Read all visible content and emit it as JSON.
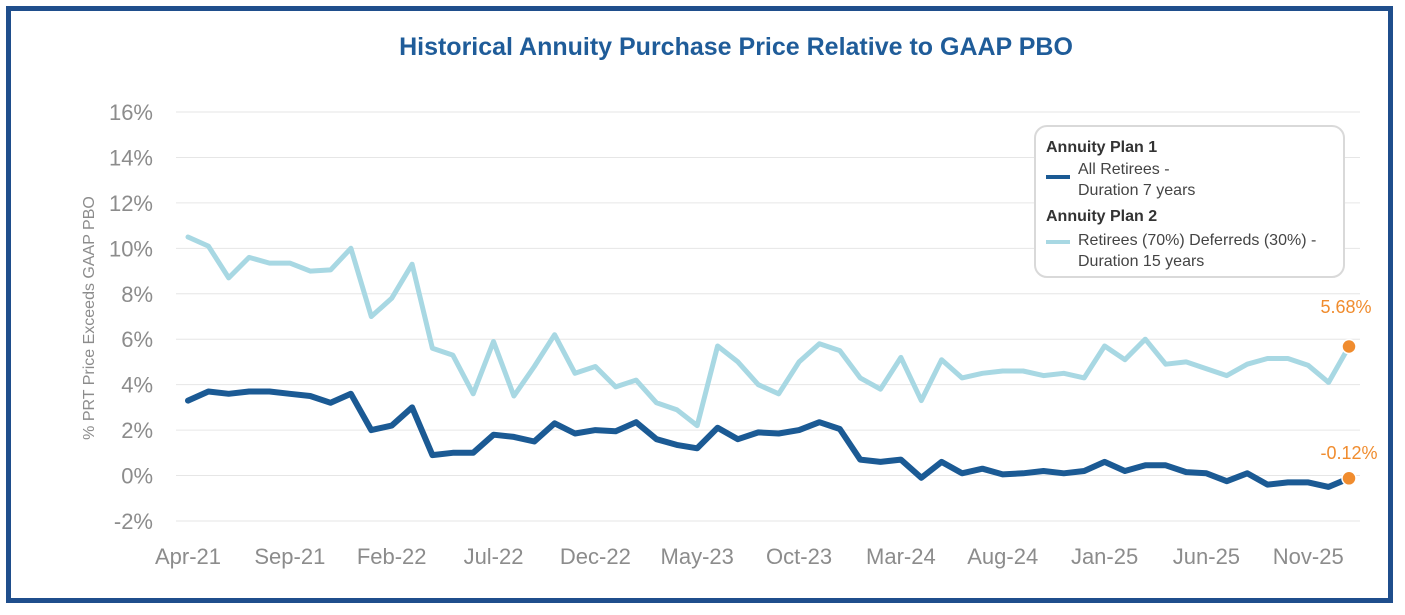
{
  "chart_data": {
    "type": "line",
    "title": "Historical Annuity Purchase Price Relative to GAAP PBO",
    "ylabel": "% PRT Price Exceeds GAAP PBO",
    "xlabel": "",
    "ylim": [
      -2,
      16
    ],
    "yticks": [
      -2,
      0,
      2,
      4,
      6,
      8,
      10,
      12,
      14,
      16
    ],
    "ytick_labels": [
      "-2%",
      "0%",
      "2%",
      "4%",
      "6%",
      "8%",
      "10%",
      "12%",
      "14%",
      "16%"
    ],
    "xtick_labels": [
      "Apr-21",
      "Sep-21",
      "Feb-22",
      "Jul-22",
      "Dec-22",
      "May-23",
      "Oct-23",
      "Mar-24",
      "Aug-24",
      "Jan-25",
      "Jun-25",
      "Nov-25"
    ],
    "xtick_interval_months": 5,
    "series": [
      {
        "name": "Retirees (70%) Deferreds (30%) - Duration 15 years",
        "group": "Annuity Plan 2",
        "color": "#a8d8e3",
        "values": [
          10.5,
          10.1,
          8.7,
          9.6,
          9.35,
          9.35,
          9.0,
          9.05,
          10.0,
          7.0,
          7.8,
          9.3,
          5.6,
          5.3,
          3.6,
          5.9,
          3.5,
          4.8,
          6.2,
          4.5,
          4.8,
          3.9,
          4.2,
          3.2,
          2.9,
          2.2,
          5.7,
          5.0,
          4.0,
          3.6,
          5.0,
          5.8,
          5.5,
          4.3,
          3.8,
          5.2,
          3.3,
          5.1,
          4.3,
          4.5,
          4.6,
          4.6,
          4.4,
          4.5,
          4.3,
          5.7,
          5.1,
          6.0,
          4.9,
          5.0,
          4.7,
          4.4,
          4.9,
          5.15,
          5.15,
          4.85,
          4.1,
          5.68
        ]
      },
      {
        "name": "All Retirees - Duration 7 years",
        "group": "Annuity Plan 1",
        "color": "#1b5a94",
        "values": [
          3.3,
          3.7,
          3.6,
          3.7,
          3.7,
          3.6,
          3.5,
          3.2,
          3.6,
          2.0,
          2.2,
          3.0,
          0.9,
          1.0,
          1.0,
          1.8,
          1.7,
          1.5,
          2.3,
          1.85,
          2.0,
          1.95,
          2.35,
          1.6,
          1.35,
          1.2,
          2.1,
          1.6,
          1.9,
          1.85,
          2.0,
          2.35,
          2.05,
          0.7,
          0.6,
          0.7,
          -0.1,
          0.6,
          0.1,
          0.3,
          0.05,
          0.1,
          0.2,
          0.1,
          0.2,
          0.6,
          0.2,
          0.45,
          0.45,
          0.15,
          0.1,
          -0.25,
          0.1,
          -0.4,
          -0.3,
          -0.3,
          -0.5,
          -0.12
        ]
      }
    ],
    "end_labels": [
      "5.68%",
      "-0.12%"
    ],
    "legend": {
      "position": "top-right",
      "plan1_heading": "Annuity Plan 1",
      "plan1_line1": "All Retirees -",
      "plan1_line2": "Duration 7 years",
      "plan2_heading": "Annuity Plan 2",
      "plan2_line1": "Retirees (70%) Deferreds (30%) -",
      "plan2_line2": "Duration 15 years"
    },
    "end_marker_color": "#f08c2e"
  }
}
